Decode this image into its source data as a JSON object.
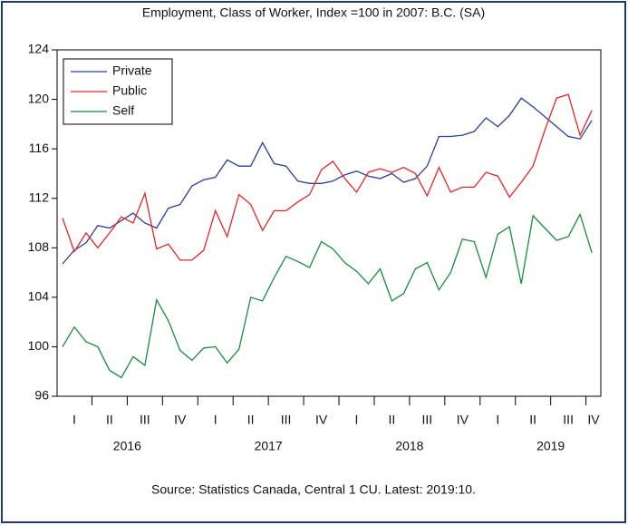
{
  "chart_data": {
    "type": "line",
    "title": "Employment, Class of Worker, Index =100 in 2007: B.C. (SA)",
    "source": "Source: Statistics Canada, Central 1 CU. Latest: 2019:10.",
    "quarter_labels": [
      "I",
      "II",
      "III",
      "IV",
      "I",
      "II",
      "III",
      "IV",
      "I",
      "II",
      "III",
      "IV",
      "I",
      "II",
      "III",
      "IV"
    ],
    "year_labels": [
      "2016",
      "2017",
      "2018",
      "2019"
    ],
    "ylim": [
      96,
      124
    ],
    "yticks": [
      96,
      100,
      104,
      108,
      112,
      116,
      120,
      124
    ],
    "legend": "upper left",
    "series": [
      {
        "name": "Private",
        "color": "#2b3f96",
        "values": [
          106.7,
          107.8,
          108.4,
          109.8,
          109.6,
          110.2,
          110.8,
          110.0,
          109.6,
          111.2,
          111.5,
          113.0,
          113.5,
          113.7,
          115.1,
          114.6,
          114.6,
          116.5,
          114.8,
          114.6,
          113.4,
          113.2,
          113.2,
          113.4,
          113.9,
          114.2,
          113.8,
          113.6,
          114.0,
          113.3,
          113.6,
          114.6,
          117.0,
          117.0,
          117.1,
          117.4,
          118.5,
          117.8,
          118.7,
          120.1,
          119.4,
          118.6,
          117.8,
          117.0,
          116.8,
          118.3
        ]
      },
      {
        "name": "Public",
        "color": "#e3262b",
        "values": [
          110.4,
          107.7,
          109.2,
          108.0,
          109.2,
          110.5,
          110.0,
          112.4,
          107.9,
          108.3,
          107.0,
          107.0,
          107.8,
          111.0,
          108.9,
          112.3,
          111.5,
          109.4,
          111.0,
          111.0,
          111.7,
          112.3,
          114.3,
          115.0,
          113.6,
          112.5,
          114.1,
          114.4,
          114.1,
          114.5,
          114.0,
          112.2,
          114.5,
          112.5,
          112.9,
          112.9,
          114.1,
          113.8,
          112.1,
          113.3,
          114.6,
          117.5,
          120.1,
          120.4,
          117.1,
          119.1
        ]
      },
      {
        "name": "Self",
        "color": "#1b8a3e",
        "values": [
          100.0,
          101.6,
          100.4,
          100.0,
          98.1,
          97.5,
          99.2,
          98.5,
          103.8,
          102.1,
          99.7,
          98.9,
          99.9,
          100.0,
          98.7,
          99.8,
          104.0,
          103.7,
          105.6,
          107.3,
          106.9,
          106.4,
          108.5,
          107.9,
          106.8,
          106.1,
          105.1,
          106.3,
          103.7,
          104.3,
          106.3,
          106.8,
          104.6,
          106.0,
          108.7,
          108.5,
          105.6,
          109.1,
          109.7,
          105.1,
          110.6,
          109.6,
          108.6,
          108.9,
          110.7,
          107.6
        ]
      }
    ]
  }
}
